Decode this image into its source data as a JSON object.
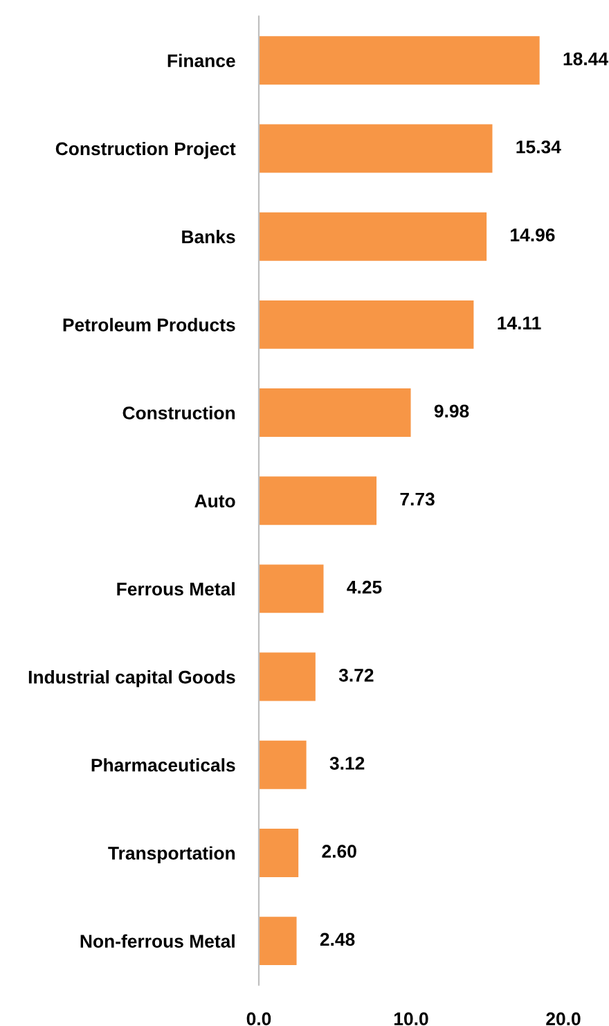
{
  "chart_data": {
    "type": "bar",
    "orientation": "horizontal",
    "categories": [
      "Finance",
      "Construction Project",
      "Banks",
      "Petroleum Products",
      "Construction",
      "Auto",
      "Ferrous Metal",
      "Industrial capital Goods",
      "Pharmaceuticals",
      "Transportation",
      "Non-ferrous Metal"
    ],
    "values": [
      18.44,
      15.34,
      14.96,
      14.11,
      9.98,
      7.73,
      4.25,
      3.72,
      3.12,
      2.6,
      2.48
    ],
    "value_labels": [
      "18.44",
      "15.34",
      "14.96",
      "14.11",
      "9.98",
      "7.73",
      "4.25",
      "3.72",
      "3.12",
      "2.60",
      "2.48"
    ],
    "color": "#f79646",
    "xlim": [
      0,
      20
    ],
    "xticks": [
      {
        "value": 0,
        "label": "0.0"
      },
      {
        "value": 10,
        "label": "10.0"
      },
      {
        "value": 20,
        "label": "20.0"
      }
    ],
    "grid": false
  }
}
